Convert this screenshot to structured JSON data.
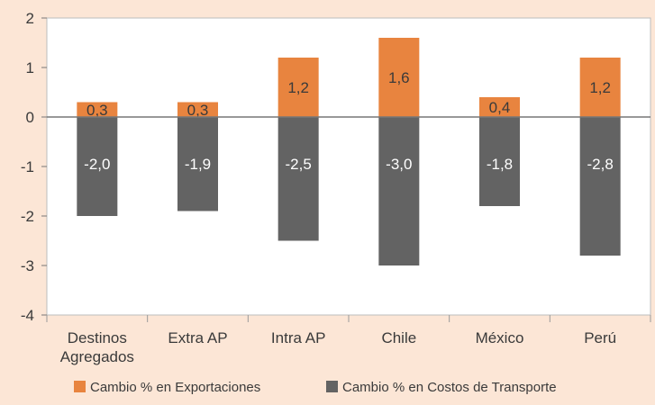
{
  "chart_data": {
    "type": "bar",
    "stacked_around_zero": true,
    "categories": [
      [
        "Destinos",
        "Agregados"
      ],
      [
        "Extra AP"
      ],
      [
        "Intra AP"
      ],
      [
        "Chile"
      ],
      [
        "México"
      ],
      [
        "Perú"
      ]
    ],
    "series": [
      {
        "name": "Cambio % en Exportaciones",
        "color": "#e8843f",
        "values": [
          0.3,
          0.3,
          1.2,
          1.6,
          0.4,
          1.2
        ],
        "labels": [
          "0,3",
          "0,3",
          "1,2",
          "1,6",
          "0,4",
          "1,2"
        ],
        "label_color": "#3a3a3a"
      },
      {
        "name": "Cambio % en Costos de Transporte",
        "color": "#636363",
        "values": [
          -2.0,
          -1.9,
          -2.5,
          -3.0,
          -1.8,
          -2.8
        ],
        "labels": [
          "-2,0",
          "-1,9",
          "-2,5",
          "-3,0",
          "-1,8",
          "-2,8"
        ],
        "label_color": "#ffffff"
      }
    ],
    "ylim": [
      -4,
      2
    ],
    "yticks": [
      2,
      1,
      0,
      -1,
      -2,
      -3,
      -4
    ],
    "ytick_labels": [
      "2",
      "1",
      "0",
      "-1",
      "-2",
      "-3",
      "-4"
    ],
    "legend_position": "bottom",
    "plot_background": "#ffffff",
    "zero_line_color": "#777777"
  }
}
